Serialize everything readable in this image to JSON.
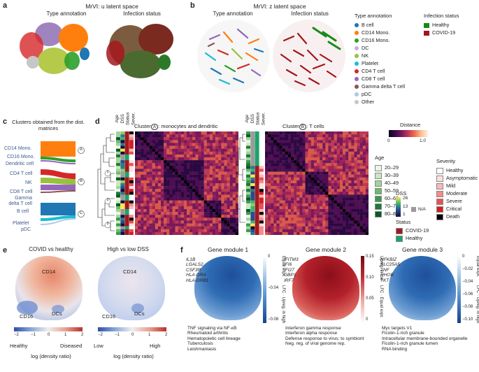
{
  "panel_labels": {
    "a": "a",
    "b": "b",
    "c": "c",
    "d": "d",
    "e": "e",
    "f": "f"
  },
  "panel_a": {
    "title": "MrVI: u latent space",
    "sub_left": "Type annotation",
    "sub_right": "Infection status"
  },
  "panel_b": {
    "title": "MrVI: z latent space",
    "sub_left": "Type annotation",
    "sub_right": "Infection status"
  },
  "type_legend": {
    "title": "Type annotation",
    "items": [
      {
        "label": "B cell",
        "color": "#1f77b4"
      },
      {
        "label": "CD14 Mono.",
        "color": "#ff7f0e"
      },
      {
        "label": "CD16 Mono.",
        "color": "#2ca02c"
      },
      {
        "label": "DC",
        "color": "#c5b0d5"
      },
      {
        "label": "NK",
        "color": "#98c13c"
      },
      {
        "label": "Platelet",
        "color": "#17becf"
      },
      {
        "label": "CD4 T cell",
        "color": "#d62728"
      },
      {
        "label": "CD8 T cell",
        "color": "#9467bd"
      },
      {
        "label": "Gamma delta T cell",
        "color": "#8c564b"
      },
      {
        "label": "pDC",
        "color": "#aec7e8"
      },
      {
        "label": "Other",
        "color": "#c7c7c7"
      }
    ]
  },
  "infection_legend": {
    "title": "Infection status",
    "items": [
      {
        "label": "Healthy",
        "color": "#1a8a1a"
      },
      {
        "label": "COVID-19",
        "color": "#a3171c"
      }
    ]
  },
  "panel_c": {
    "title": "Clusters obtained from the dist. matrices",
    "left_labels": [
      "CD14 Mono.",
      "CD16 Mono.",
      "Dendritic cell",
      "CD4 T cell",
      "NK",
      "CD8 T cell",
      "Gamma delta T cell",
      "B cell",
      "Platelet",
      "pDC"
    ],
    "clusters": [
      "A",
      "B",
      "C"
    ]
  },
  "panel_d": {
    "col_headers": [
      "Age",
      "DSS",
      "Status",
      "Sever."
    ],
    "title_a": "Cluster",
    "title_a_rest": ": monocytes and dendritic",
    "title_b": "Cluster",
    "title_b_rest": ": T cells",
    "cluster_a": "A",
    "cluster_b": "B",
    "dendro_marks": [
      "1",
      "2",
      "3"
    ],
    "distance": {
      "title": "Distance",
      "min": "0",
      "max": "1.0"
    },
    "age": {
      "title": "Age",
      "items": [
        {
          "label": "20–29",
          "color": "#eaf6e6"
        },
        {
          "label": "30–39",
          "color": "#c9e8c0"
        },
        {
          "label": "40–49",
          "color": "#9fd49a"
        },
        {
          "label": "50–59",
          "color": "#6cba6f"
        },
        {
          "label": "60–69",
          "color": "#3b9a4e"
        },
        {
          "label": "70–79",
          "color": "#1d7a37"
        },
        {
          "label": "80–89",
          "color": "#0a5a25"
        }
      ]
    },
    "dss": {
      "title": "DSS",
      "ticks": [
        "26",
        "13",
        "1"
      ],
      "na": "N/A"
    },
    "status": {
      "title": "Status",
      "items": [
        {
          "label": "COVID-19",
          "color": "#a3171c"
        },
        {
          "label": "Healthy",
          "color": "#1aa36b"
        }
      ]
    },
    "severity": {
      "title": "Severity",
      "items": [
        {
          "label": "Healthy",
          "color": "#ffffff"
        },
        {
          "label": "Asymptomatic",
          "color": "#fde0e0"
        },
        {
          "label": "Mild",
          "color": "#f9b9b9"
        },
        {
          "label": "Moderate",
          "color": "#f48b8b"
        },
        {
          "label": "Severe",
          "color": "#ea5050"
        },
        {
          "label": "Critical",
          "color": "#d21f24"
        },
        {
          "label": "Death",
          "color": "#000000"
        }
      ]
    }
  },
  "panel_e": {
    "left_title": "COVID vs healthy",
    "right_title": "High vs low DSS",
    "labels": {
      "cd14": "CD14",
      "cd16": "CD16",
      "dcs": "DCs"
    },
    "left_ticks": [
      "−2",
      "−1",
      "0",
      "1",
      "2"
    ],
    "right_ticks": [
      "−2",
      "−1",
      "0",
      "1",
      "2"
    ],
    "left_low": "Healthy",
    "left_high": "Diseased",
    "right_low": "Low",
    "right_high": "High",
    "axis_label": "log (density ratio)"
  },
  "panel_f": {
    "modules": [
      {
        "title": "Gene module 1",
        "genes": [
          "IL1B",
          "LGALS2",
          "CSF3R",
          "HLA-DRA",
          "HLA-DRB1"
        ],
        "ticks": [
          "0",
          "−0.04",
          "−0.08"
        ],
        "top": "Equal expr.",
        "bottom": "LFC · Upreg. in high",
        "terms": [
          "TNF signaling via NF-κB",
          "Rheumatoid arthritis",
          "Hematopoietic cell lineage",
          "Tuberculosis",
          "Leishmaniasis"
        ]
      },
      {
        "title": "Gene module 2",
        "genes": [
          "IFITM3",
          "IFI6",
          "IFI27",
          "GBP1",
          "IRF7"
        ],
        "ticks": [
          "0.15",
          "0.10",
          "0.05",
          "0"
        ],
        "top": "Upreg. in low",
        "bottom": "LFC · Equal expr.",
        "terms": [
          "Interferon gamma response",
          "Interferon alpha response",
          "Defense response to virus; to symbiont",
          "Neg. reg. of viral genome rep."
        ]
      },
      {
        "title": "Gene module 3",
        "genes": [
          "NFKBIZ",
          "SLC25A5",
          "TNF",
          "RHOB",
          "TKT"
        ],
        "ticks": [
          "0",
          "−0.02",
          "−0.04",
          "−0.06",
          "−0.08",
          "−0.10"
        ],
        "top": "Equal expr.",
        "bottom": "LFC · Upreg. in high",
        "terms": [
          "Myc targets V1",
          "Ficolin-1-rich granule",
          "Intracellular membrane-bounded organelle",
          "Ficolin-1-rich granule lumen",
          "RNA binding"
        ]
      }
    ]
  }
}
